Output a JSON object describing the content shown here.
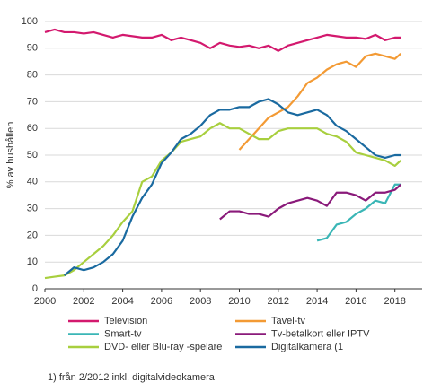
{
  "chart_data": {
    "type": "line",
    "ylabel": "% av hushållen",
    "footnote": "1) från 2/2012 inkl. digitalvideokamera",
    "xlim": [
      2000,
      2019.4
    ],
    "xticks": [
      2000,
      2002,
      2004,
      2006,
      2008,
      2010,
      2012,
      2014,
      2016,
      2018
    ],
    "ylim": [
      0,
      100
    ],
    "yticks": [
      0,
      10,
      20,
      30,
      40,
      50,
      60,
      70,
      80,
      90,
      100
    ],
    "grid": true,
    "series": [
      {
        "name": "Television",
        "color": "#d3196e",
        "x": [
          2000,
          2000.5,
          2001,
          2001.5,
          2002,
          2002.5,
          2003,
          2003.5,
          2004,
          2004.5,
          2005,
          2005.5,
          2006,
          2006.5,
          2007,
          2007.5,
          2008,
          2008.5,
          2009,
          2009.5,
          2010,
          2010.5,
          2011,
          2011.5,
          2012,
          2012.5,
          2013,
          2013.5,
          2014,
          2014.5,
          2015,
          2015.5,
          2016,
          2016.5,
          2017,
          2017.5,
          2018,
          2018.3
        ],
        "values": [
          96,
          97,
          96,
          96,
          95.5,
          96,
          95,
          94,
          95,
          94.5,
          94,
          94,
          95,
          93,
          94,
          93,
          92,
          90,
          92,
          91,
          90.5,
          91,
          90,
          91,
          89,
          91,
          92,
          93,
          94,
          95,
          94.5,
          94,
          94,
          93.5,
          95,
          93,
          94,
          94
        ]
      },
      {
        "name": "Tavel-tv",
        "color": "#f39a34",
        "x": [
          2010,
          2010.5,
          2011,
          2011.5,
          2012,
          2012.5,
          2013,
          2013.5,
          2014,
          2014.5,
          2015,
          2015.5,
          2016,
          2016.5,
          2017,
          2017.5,
          2018,
          2018.3
        ],
        "values": [
          52,
          56,
          60,
          64,
          66,
          68,
          72,
          77,
          79,
          82,
          84,
          85,
          83,
          87,
          88,
          87,
          86,
          88
        ]
      },
      {
        "name": "Smart-tv",
        "color": "#3ab6b6",
        "x": [
          2014,
          2014.5,
          2015,
          2015.5,
          2016,
          2016.5,
          2017,
          2017.5,
          2018,
          2018.3
        ],
        "values": [
          18,
          19,
          24,
          25,
          28,
          30,
          33,
          32,
          39,
          39
        ]
      },
      {
        "name": "Tv-betalkort eller IPTV",
        "color": "#8a1a7a",
        "x": [
          2009,
          2009.5,
          2010,
          2010.5,
          2011,
          2011.5,
          2012,
          2012.5,
          2013,
          2013.5,
          2014,
          2014.5,
          2015,
          2015.5,
          2016,
          2016.5,
          2017,
          2017.5,
          2018,
          2018.3
        ],
        "values": [
          26,
          29,
          29,
          28,
          28,
          27,
          30,
          32,
          33,
          34,
          33,
          31,
          36,
          36,
          35,
          33,
          36,
          36,
          37,
          39
        ]
      },
      {
        "name": "DVD- eller Blu-ray -spelare",
        "color": "#a8cf3e",
        "x": [
          2000,
          2000.5,
          2001,
          2001.5,
          2002,
          2002.5,
          2003,
          2003.5,
          2004,
          2004.5,
          2005,
          2005.5,
          2006,
          2006.5,
          2007,
          2007.5,
          2008,
          2008.5,
          2009,
          2009.5,
          2010,
          2010.5,
          2011,
          2011.5,
          2012,
          2012.5,
          2013,
          2013.5,
          2014,
          2014.5,
          2015,
          2015.5,
          2016,
          2016.5,
          2017,
          2017.5,
          2018,
          2018.3
        ],
        "values": [
          4,
          4.5,
          5,
          7,
          10,
          13,
          16,
          20,
          25,
          29,
          40,
          42,
          48,
          51,
          55,
          56,
          57,
          60,
          62,
          60,
          60,
          58,
          56,
          56,
          59,
          60,
          60,
          60,
          60,
          58,
          57,
          55,
          51,
          50,
          49,
          48,
          46,
          48
        ]
      },
      {
        "name": "Digitalkamera (1",
        "color": "#1a6aa0",
        "x": [
          2001,
          2001.5,
          2002,
          2002.5,
          2003,
          2003.5,
          2004,
          2004.5,
          2005,
          2005.5,
          2006,
          2006.5,
          2007,
          2007.5,
          2008,
          2008.5,
          2009,
          2009.5,
          2010,
          2010.5,
          2011,
          2011.5,
          2012,
          2012.5,
          2013,
          2013.5,
          2014,
          2014.5,
          2015,
          2015.5,
          2016,
          2016.5,
          2017,
          2017.5,
          2018,
          2018.3
        ],
        "values": [
          5,
          8,
          7,
          8,
          10,
          13,
          18,
          27,
          34,
          39,
          47,
          51,
          56,
          58,
          61,
          65,
          67,
          67,
          68,
          68,
          70,
          71,
          69,
          66,
          65,
          66,
          67,
          65,
          61,
          59,
          56,
          53,
          50,
          49,
          50,
          50
        ]
      }
    ]
  }
}
